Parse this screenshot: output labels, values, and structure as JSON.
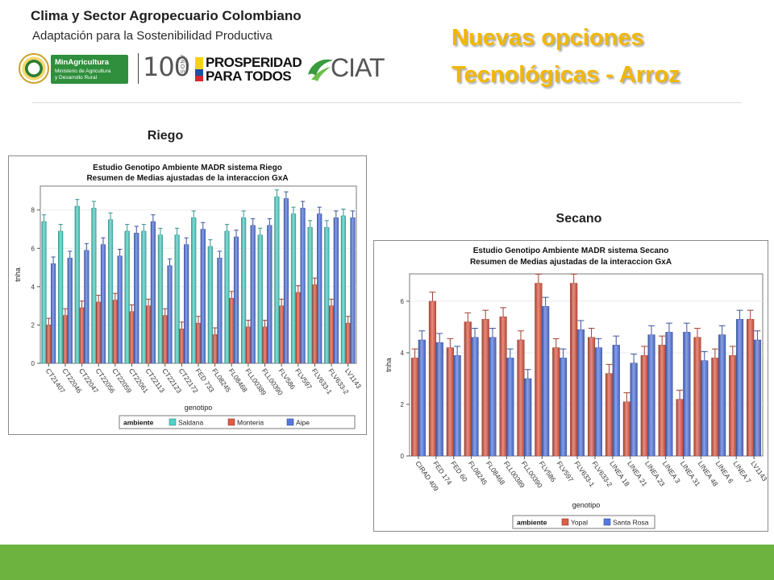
{
  "header": {
    "title": "Clima y Sector Agropecuario Colombiano",
    "subtitle": "Adaptación para la Sostenibilidad Productiva"
  },
  "logos": {
    "min_agri": {
      "name": "MinAgricultura",
      "line2": "Ministerio de Agricultura",
      "line3": "y Desarrollo Rural"
    },
    "centenario": {
      "number": "100",
      "label": "AÑOS"
    },
    "prosperidad": {
      "line1": "PROSPERIDAD",
      "line2": "PARA TODOS"
    },
    "ciat": "CIAT"
  },
  "slide_title": {
    "line1": "Nuevas opciones",
    "line2": "Tecnológicas - Arroz"
  },
  "labels": {
    "riego": "Riego",
    "secano": "Secano"
  },
  "colors": {
    "title": "#f2b705",
    "footer": "#6cb33f",
    "min_agri_green": "#2f8f3c"
  },
  "chart_data": [
    {
      "type": "bar",
      "title": "Estudio Genotipo Ambiente MADR sistema Riego",
      "subtitle": "Resumen de Medias ajustadas de la interaccion GxA",
      "xlabel": "genotipo",
      "ylabel": "tnha",
      "ylim": [
        0,
        9.25
      ],
      "yticks": [
        0,
        2,
        4,
        6,
        8
      ],
      "grid": true,
      "error_bars": true,
      "legend": {
        "title": "ambiente",
        "placement": "bottom"
      },
      "categories": [
        "CT21407",
        "CT22046",
        "CT22047",
        "CT22056",
        "CT22059",
        "CT22061",
        "CT22113",
        "CT22123",
        "CT22172",
        "FED 733",
        "FL08245",
        "FL08468",
        "FLL00389",
        "FLL00390",
        "FLV586",
        "FLV597",
        "FLV633-1",
        "FLV633-2",
        "LV1143"
      ],
      "series": [
        {
          "name": "Saldana",
          "color": "#4fd3c8",
          "values": [
            7.4,
            6.9,
            8.2,
            8.1,
            7.5,
            6.9,
            6.9,
            6.7,
            6.7,
            7.6,
            6.1,
            6.9,
            7.6,
            6.7,
            8.7,
            7.8,
            7.1,
            7.1,
            7.7
          ]
        },
        {
          "name": "Monteria",
          "color": "#e05a45",
          "values": [
            2.0,
            2.5,
            2.9,
            3.2,
            3.3,
            2.7,
            3.0,
            2.5,
            1.8,
            2.1,
            1.5,
            3.4,
            1.9,
            1.9,
            3.0,
            3.7,
            4.1,
            3.0,
            2.1
          ]
        },
        {
          "name": "Aipe",
          "color": "#5577e0",
          "values": [
            5.2,
            5.5,
            5.9,
            6.2,
            5.6,
            6.8,
            7.4,
            5.1,
            6.2,
            7.0,
            5.5,
            6.6,
            7.2,
            7.2,
            8.6,
            8.1,
            7.8,
            7.6,
            7.6
          ]
        }
      ]
    },
    {
      "type": "bar",
      "title": "Estudio Genotipo Ambiente MADR sistema Secano",
      "subtitle": "Resumen de Medias ajustadas de la interaccion GxA",
      "xlabel": "genotipo",
      "ylabel": "tnha",
      "ylim": [
        0,
        7.06
      ],
      "yticks": [
        0,
        2,
        4,
        6
      ],
      "grid": true,
      "error_bars": true,
      "legend": {
        "title": "ambiente",
        "placement": "bottom"
      },
      "categories": [
        "CIRAD 409",
        "FED 174",
        "FED 60",
        "FL08245",
        "FL08468",
        "FLL00389",
        "FLL00390",
        "FLV586",
        "FLV597",
        "FLV633-1",
        "FLV633-2",
        "LINEA 18",
        "LINEA 21",
        "LINEA 23",
        "LINEA 3",
        "LINEA 31",
        "LINEA 48",
        "LINEA 6",
        "LINEA 7",
        "LV1143"
      ],
      "series": [
        {
          "name": "Yopal",
          "color": "#e05a45",
          "values": [
            3.8,
            6.0,
            4.2,
            5.2,
            5.3,
            5.4,
            4.5,
            6.7,
            4.2,
            6.7,
            4.6,
            3.2,
            2.1,
            3.9,
            4.3,
            2.2,
            4.6,
            3.8,
            3.9,
            5.3
          ]
        },
        {
          "name": "Santa Rosa",
          "color": "#5577e0",
          "values": [
            4.5,
            4.4,
            3.9,
            4.6,
            4.6,
            3.8,
            3.0,
            5.8,
            3.8,
            4.9,
            4.2,
            4.3,
            3.6,
            4.7,
            4.8,
            4.8,
            3.7,
            4.7,
            5.3,
            4.5
          ]
        }
      ]
    }
  ]
}
